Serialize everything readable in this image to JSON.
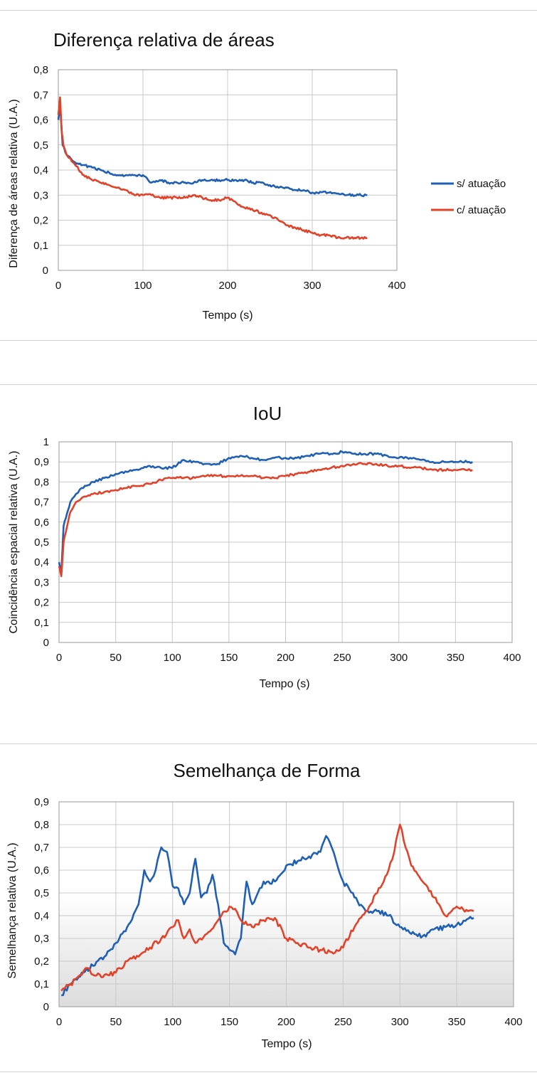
{
  "colors": {
    "blue": "#1f5fb4",
    "red": "#e0432a"
  },
  "chart_data": [
    {
      "type": "line",
      "title": "Diferença relativa de áreas",
      "xlabel": "Tempo (s)",
      "ylabel": "Diferença de áreas relativa (U.A.)",
      "xlim": [
        0,
        400
      ],
      "ylim": [
        0,
        0.8
      ],
      "xticks": [
        0,
        100,
        200,
        300,
        400
      ],
      "yticks": [
        0,
        0.1,
        0.2,
        0.3,
        0.4,
        0.5,
        0.6,
        0.7,
        0.8
      ],
      "xtick_labels": [
        "0",
        "100",
        "200",
        "300",
        "400"
      ],
      "ytick_labels": [
        "0",
        "0,1",
        "0,2",
        "0,3",
        "0,4",
        "0,5",
        "0,6",
        "0,7",
        "0,8"
      ],
      "legend": "right",
      "grid": true,
      "series": [
        {
          "name": "s/ atuação",
          "color": "#1f5fb4",
          "x": [
            0,
            2,
            5,
            10,
            20,
            30,
            40,
            50,
            60,
            70,
            80,
            90,
            100,
            110,
            120,
            130,
            140,
            150,
            160,
            170,
            180,
            190,
            200,
            210,
            220,
            230,
            240,
            250,
            260,
            270,
            280,
            290,
            300,
            320,
            340,
            365
          ],
          "y": [
            0.6,
            0.66,
            0.5,
            0.46,
            0.43,
            0.42,
            0.41,
            0.4,
            0.39,
            0.38,
            0.38,
            0.38,
            0.38,
            0.35,
            0.36,
            0.35,
            0.35,
            0.35,
            0.35,
            0.36,
            0.36,
            0.36,
            0.36,
            0.36,
            0.36,
            0.35,
            0.35,
            0.34,
            0.33,
            0.33,
            0.32,
            0.32,
            0.31,
            0.31,
            0.3,
            0.3
          ]
        },
        {
          "name": "c/ atuação",
          "color": "#e0432a",
          "x": [
            0,
            2,
            4,
            6,
            10,
            20,
            30,
            40,
            50,
            60,
            70,
            80,
            90,
            100,
            110,
            120,
            130,
            140,
            150,
            160,
            170,
            180,
            190,
            200,
            210,
            220,
            230,
            240,
            250,
            260,
            270,
            280,
            290,
            300,
            310,
            320,
            330,
            340,
            350,
            365
          ],
          "y": [
            0.62,
            0.69,
            0.55,
            0.5,
            0.46,
            0.42,
            0.38,
            0.36,
            0.35,
            0.34,
            0.33,
            0.32,
            0.3,
            0.3,
            0.3,
            0.29,
            0.29,
            0.29,
            0.29,
            0.3,
            0.29,
            0.28,
            0.28,
            0.29,
            0.27,
            0.25,
            0.24,
            0.23,
            0.22,
            0.2,
            0.18,
            0.17,
            0.16,
            0.15,
            0.14,
            0.14,
            0.13,
            0.13,
            0.13,
            0.13
          ]
        }
      ]
    },
    {
      "type": "line",
      "title": "IoU",
      "xlabel": "Tempo (s)",
      "ylabel": "Coincidência espacial relativa (U.A.)",
      "xlim": [
        0,
        400
      ],
      "ylim": [
        0,
        1
      ],
      "xticks": [
        0,
        50,
        100,
        150,
        200,
        250,
        300,
        350,
        400
      ],
      "yticks": [
        0,
        0.1,
        0.2,
        0.3,
        0.4,
        0.5,
        0.6,
        0.7,
        0.8,
        0.9,
        1
      ],
      "xtick_labels": [
        "0",
        "50",
        "100",
        "150",
        "200",
        "250",
        "300",
        "350",
        "400"
      ],
      "ytick_labels": [
        "0",
        "0,1",
        "0,2",
        "0,3",
        "0,4",
        "0,5",
        "0,6",
        "0,7",
        "0,8",
        "0,9",
        "1"
      ],
      "grid": true,
      "series": [
        {
          "name": "s/ atuação",
          "color": "#1f5fb4",
          "x": [
            0,
            2,
            4,
            6,
            8,
            10,
            15,
            20,
            30,
            40,
            50,
            60,
            70,
            80,
            90,
            100,
            110,
            120,
            130,
            140,
            150,
            160,
            170,
            180,
            190,
            200,
            210,
            220,
            230,
            240,
            250,
            260,
            270,
            280,
            290,
            300,
            310,
            320,
            330,
            340,
            350,
            365
          ],
          "y": [
            0.4,
            0.35,
            0.58,
            0.62,
            0.66,
            0.7,
            0.74,
            0.77,
            0.8,
            0.82,
            0.84,
            0.85,
            0.86,
            0.88,
            0.87,
            0.87,
            0.91,
            0.9,
            0.89,
            0.89,
            0.92,
            0.93,
            0.92,
            0.91,
            0.92,
            0.92,
            0.92,
            0.93,
            0.94,
            0.94,
            0.95,
            0.94,
            0.94,
            0.94,
            0.93,
            0.92,
            0.92,
            0.91,
            0.9,
            0.9,
            0.9,
            0.9
          ]
        },
        {
          "name": "c/ atuação",
          "color": "#e0432a",
          "x": [
            0,
            2,
            4,
            6,
            8,
            10,
            15,
            20,
            30,
            40,
            50,
            60,
            70,
            80,
            90,
            100,
            110,
            120,
            130,
            140,
            150,
            160,
            170,
            180,
            190,
            200,
            210,
            220,
            230,
            240,
            250,
            260,
            270,
            280,
            290,
            300,
            310,
            320,
            330,
            340,
            350,
            365
          ],
          "y": [
            0.38,
            0.33,
            0.5,
            0.55,
            0.6,
            0.65,
            0.7,
            0.72,
            0.74,
            0.75,
            0.76,
            0.77,
            0.78,
            0.79,
            0.81,
            0.82,
            0.82,
            0.82,
            0.83,
            0.83,
            0.83,
            0.83,
            0.83,
            0.82,
            0.82,
            0.83,
            0.84,
            0.85,
            0.86,
            0.87,
            0.88,
            0.89,
            0.89,
            0.89,
            0.88,
            0.88,
            0.87,
            0.87,
            0.86,
            0.86,
            0.86,
            0.86
          ]
        }
      ]
    },
    {
      "type": "line",
      "title": "Semelhança de Forma",
      "xlabel": "Tempo (s)",
      "ylabel": "Semelhança relativa (U.A.)",
      "xlim": [
        0,
        400
      ],
      "ylim": [
        0,
        0.9
      ],
      "xticks": [
        0,
        50,
        100,
        150,
        200,
        250,
        300,
        350,
        400
      ],
      "yticks": [
        0,
        0.1,
        0.2,
        0.3,
        0.4,
        0.5,
        0.6,
        0.7,
        0.8,
        0.9
      ],
      "xtick_labels": [
        "0",
        "50",
        "100",
        "150",
        "200",
        "250",
        "300",
        "350",
        "400"
      ],
      "ytick_labels": [
        "0",
        "0,1",
        "0,2",
        "0,3",
        "0,4",
        "0,5",
        "0,6",
        "0,7",
        "0,8",
        "0,9"
      ],
      "grid": true,
      "series": [
        {
          "name": "s/ atuação",
          "color": "#1f5fb4",
          "x": [
            2,
            10,
            20,
            30,
            40,
            50,
            60,
            70,
            75,
            80,
            85,
            90,
            95,
            100,
            105,
            110,
            115,
            120,
            125,
            130,
            135,
            140,
            145,
            150,
            155,
            160,
            165,
            170,
            175,
            180,
            190,
            200,
            210,
            220,
            230,
            235,
            240,
            245,
            250,
            260,
            270,
            280,
            290,
            300,
            310,
            320,
            330,
            340,
            350,
            365
          ],
          "y": [
            0.05,
            0.1,
            0.15,
            0.18,
            0.22,
            0.28,
            0.35,
            0.45,
            0.6,
            0.55,
            0.6,
            0.7,
            0.68,
            0.53,
            0.52,
            0.45,
            0.5,
            0.65,
            0.48,
            0.5,
            0.58,
            0.45,
            0.28,
            0.25,
            0.23,
            0.3,
            0.55,
            0.45,
            0.5,
            0.55,
            0.55,
            0.62,
            0.64,
            0.66,
            0.68,
            0.75,
            0.7,
            0.62,
            0.55,
            0.48,
            0.42,
            0.42,
            0.4,
            0.35,
            0.32,
            0.31,
            0.34,
            0.35,
            0.36,
            0.39
          ]
        },
        {
          "name": "c/ atuação",
          "color": "#e0432a",
          "x": [
            2,
            10,
            20,
            25,
            30,
            40,
            50,
            60,
            70,
            80,
            90,
            100,
            105,
            110,
            115,
            120,
            130,
            140,
            150,
            155,
            160,
            170,
            180,
            190,
            200,
            210,
            220,
            230,
            240,
            250,
            260,
            270,
            280,
            290,
            295,
            300,
            305,
            310,
            320,
            330,
            340,
            350,
            360,
            365
          ],
          "y": [
            0.07,
            0.1,
            0.14,
            0.17,
            0.14,
            0.14,
            0.15,
            0.2,
            0.22,
            0.26,
            0.3,
            0.35,
            0.38,
            0.3,
            0.34,
            0.28,
            0.32,
            0.38,
            0.44,
            0.43,
            0.38,
            0.35,
            0.38,
            0.39,
            0.3,
            0.28,
            0.26,
            0.25,
            0.24,
            0.26,
            0.35,
            0.42,
            0.5,
            0.6,
            0.68,
            0.8,
            0.7,
            0.62,
            0.55,
            0.48,
            0.4,
            0.44,
            0.42,
            0.42
          ]
        }
      ]
    }
  ]
}
